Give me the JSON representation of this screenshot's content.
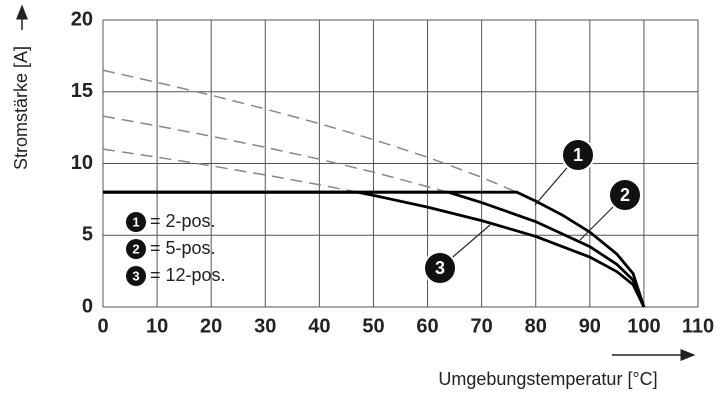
{
  "chart_data": {
    "type": "line",
    "x_label": "Umgebungstemperatur [°C]",
    "y_label": "Stromstärke [A]",
    "xlim": [
      0,
      110
    ],
    "ylim": [
      0,
      20
    ],
    "xticks": [
      0,
      10,
      20,
      30,
      40,
      50,
      60,
      70,
      80,
      90,
      100,
      110
    ],
    "yticks": [
      0,
      5,
      10,
      15,
      20
    ],
    "grid": true,
    "series": [
      {
        "name": "= 2-pos.",
        "marker": "1",
        "color": "#000000",
        "solid": {
          "x": [
            0,
            76.5,
            80,
            85,
            90,
            95,
            98,
            100
          ],
          "values": [
            8,
            8,
            7.38,
            6.39,
            5.22,
            3.69,
            2.33,
            0
          ]
        },
        "dashed": {
          "x": [
            0,
            10,
            20,
            30,
            40,
            50,
            60,
            70,
            76.5
          ],
          "values": [
            16.5,
            15.65,
            14.76,
            13.8,
            12.78,
            11.67,
            10.44,
            9.04,
            8
          ]
        }
      },
      {
        "name": "= 5-pos.",
        "marker": "2",
        "color": "#000000",
        "solid": {
          "x": [
            0,
            63.8,
            70,
            80,
            90,
            95,
            98,
            100
          ],
          "values": [
            8,
            8,
            7.28,
            5.95,
            4.21,
            2.97,
            1.88,
            0
          ]
        },
        "dashed": {
          "x": [
            0,
            10,
            20,
            30,
            40,
            50,
            63.8
          ],
          "values": [
            13.3,
            12.62,
            11.9,
            11.13,
            10.3,
            9.4,
            8
          ]
        }
      },
      {
        "name": "= 12-pos.",
        "marker": "3",
        "color": "#000000",
        "solid": {
          "x": [
            0,
            47.1,
            50,
            60,
            70,
            80,
            90,
            95,
            98,
            100
          ],
          "values": [
            8,
            8,
            7.78,
            6.96,
            6.02,
            4.92,
            3.48,
            2.46,
            1.56,
            0
          ]
        },
        "dashed": {
          "x": [
            0,
            10,
            20,
            30,
            40,
            47.1
          ],
          "values": [
            11,
            10.44,
            9.84,
            9.2,
            8.52,
            8
          ]
        }
      }
    ]
  }
}
